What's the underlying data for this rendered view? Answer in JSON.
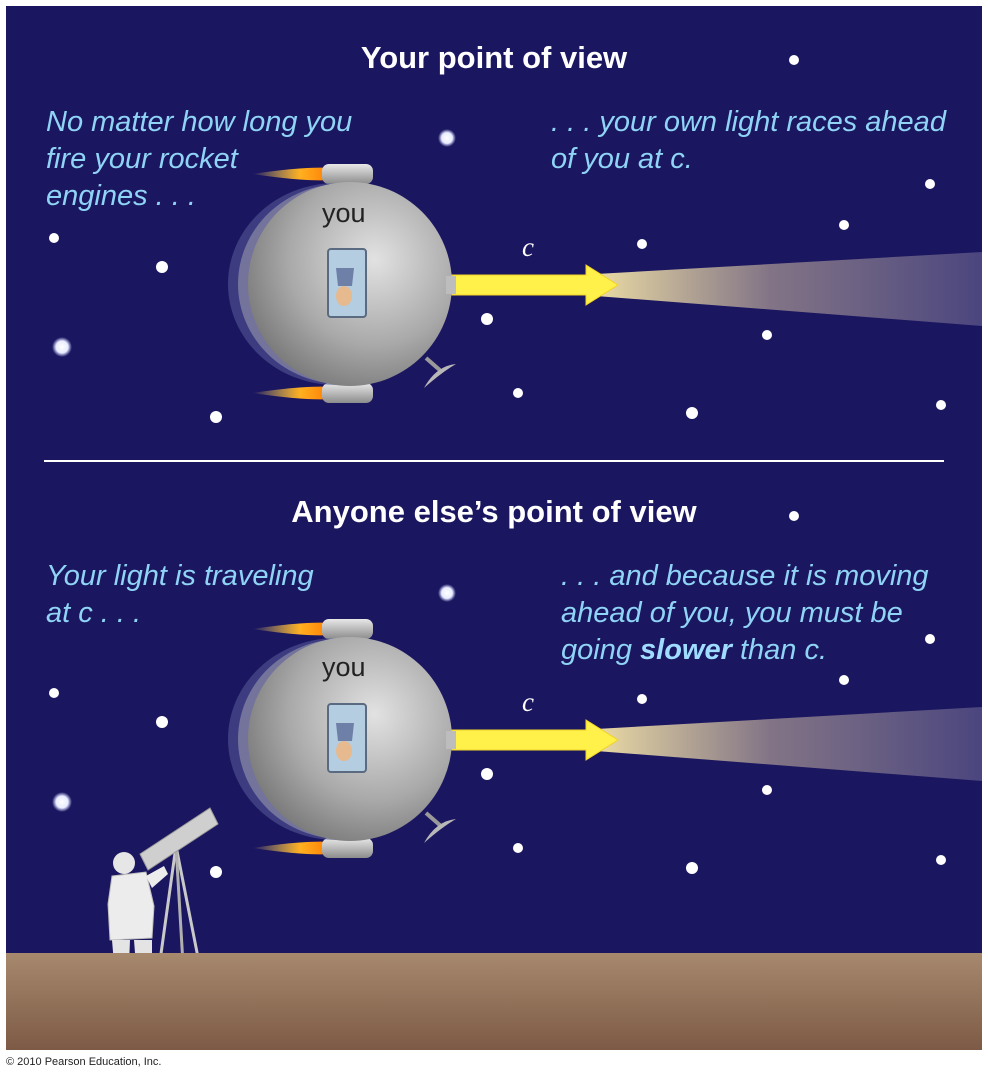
{
  "top_panel": {
    "heading": "Your point of view",
    "left_note": [
      "No matter how long you",
      "fire your rocket",
      "engines . . ."
    ],
    "right_note": [
      ". . . your own light races ahead",
      "of you at c."
    ],
    "ship_label": "you",
    "light_label": "c"
  },
  "bottom_panel": {
    "heading": "Anyone else’s point of view",
    "left_note": [
      "Your light is traveling",
      "at c . . ."
    ],
    "right_note_lines": [
      ". . . and because it is moving",
      "ahead of you, you must be"
    ],
    "right_note_last": {
      "before": "going ",
      "bold": "slower",
      "after": " than c."
    },
    "ship_label": "you",
    "light_label": "c"
  },
  "copyright": "© 2010 Pearson Education, Inc.",
  "colors": {
    "sky": "#1b1660",
    "note_text": "#8fd3f5",
    "ground": "#8e6c55",
    "beam": "#fff04a"
  }
}
